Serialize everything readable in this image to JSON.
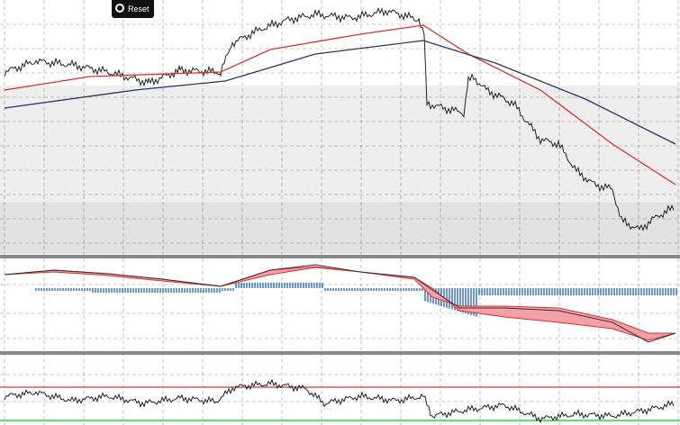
{
  "toolbar": {
    "reset_button": "Reset"
  }
}
